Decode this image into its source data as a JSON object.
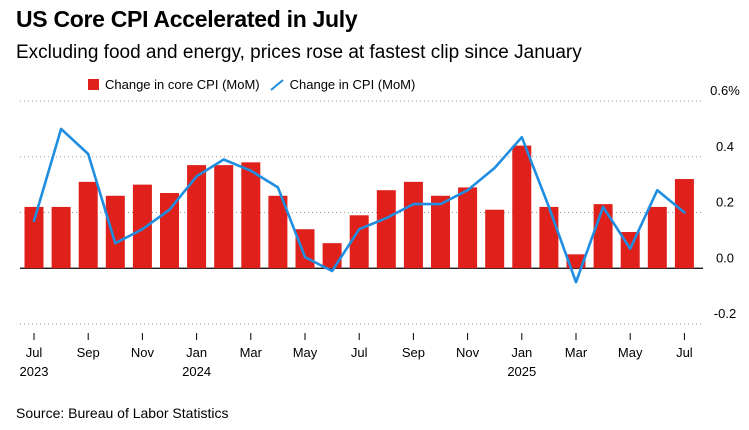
{
  "colors": {
    "bar": "#e0201b",
    "line": "#1f8ee0",
    "axis": "#000000",
    "grid": "#000000"
  },
  "chart_data": {
    "type": "bar",
    "title": "US Core CPI Accelerated in July",
    "subtitle": "Excluding food and energy, prices rose at fastest clip since January",
    "source": "Source: Bureau of Labor Statistics",
    "ylim": [
      -0.2,
      0.6
    ],
    "yticks": [
      {
        "value": 0.6,
        "label": "0.6%"
      },
      {
        "value": 0.4,
        "label": "0.4"
      },
      {
        "value": 0.2,
        "label": "0.2"
      },
      {
        "value": 0.0,
        "label": "0.0"
      },
      {
        "value": -0.2,
        "label": "-0.2"
      }
    ],
    "grid": "dotted horizontal",
    "legend_position": "top-left",
    "categories": [
      "2023-07",
      "2023-08",
      "2023-09",
      "2023-10",
      "2023-11",
      "2023-12",
      "2024-01",
      "2024-02",
      "2024-03",
      "2024-04",
      "2024-05",
      "2024-06",
      "2024-07",
      "2024-08",
      "2024-09",
      "2024-10",
      "2024-11",
      "2024-12",
      "2025-01",
      "2025-02",
      "2025-03",
      "2025-04",
      "2025-05",
      "2025-06",
      "2025-07"
    ],
    "xtick_labels": [
      {
        "index": 0,
        "label": "Jul",
        "year": "2023"
      },
      {
        "index": 2,
        "label": "Sep",
        "year": ""
      },
      {
        "index": 4,
        "label": "Nov",
        "year": ""
      },
      {
        "index": 6,
        "label": "Jan",
        "year": "2024"
      },
      {
        "index": 8,
        "label": "Mar",
        "year": ""
      },
      {
        "index": 10,
        "label": "May",
        "year": ""
      },
      {
        "index": 12,
        "label": "Jul",
        "year": ""
      },
      {
        "index": 14,
        "label": "Sep",
        "year": ""
      },
      {
        "index": 16,
        "label": "Nov",
        "year": ""
      },
      {
        "index": 18,
        "label": "Jan",
        "year": "2025"
      },
      {
        "index": 20,
        "label": "Mar",
        "year": ""
      },
      {
        "index": 22,
        "label": "May",
        "year": ""
      },
      {
        "index": 24,
        "label": "Jul",
        "year": ""
      }
    ],
    "series": [
      {
        "name": "Change in core CPI (MoM)",
        "type": "bar",
        "values": [
          0.22,
          0.22,
          0.31,
          0.26,
          0.3,
          0.27,
          0.37,
          0.37,
          0.38,
          0.26,
          0.14,
          0.09,
          0.19,
          0.28,
          0.31,
          0.26,
          0.29,
          0.21,
          0.44,
          0.22,
          0.05,
          0.23,
          0.13,
          0.22,
          0.32
        ]
      },
      {
        "name": "Change in CPI (MoM)",
        "type": "line",
        "values": [
          0.17,
          0.5,
          0.41,
          0.09,
          0.14,
          0.21,
          0.33,
          0.39,
          0.35,
          0.29,
          0.04,
          -0.01,
          0.14,
          0.18,
          0.23,
          0.23,
          0.28,
          0.36,
          0.47,
          0.22,
          -0.05,
          0.22,
          0.07,
          0.28,
          0.2
        ]
      }
    ]
  }
}
